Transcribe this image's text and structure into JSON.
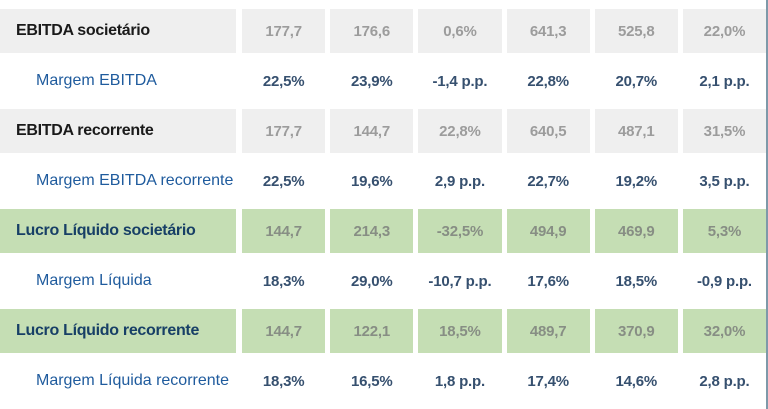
{
  "chart_data": {
    "type": "table",
    "rows": [
      {
        "label": "EBITDA societário",
        "style": "gray",
        "values": [
          "177,7",
          "176,6",
          "0,6%",
          "641,3",
          "525,8",
          "22,0%"
        ]
      },
      {
        "label": "Margem EBITDA",
        "style": "margin",
        "values": [
          "22,5%",
          "23,9%",
          "-1,4 p.p.",
          "22,8%",
          "20,7%",
          "2,1 p.p."
        ]
      },
      {
        "label": "EBITDA recorrente",
        "style": "gray",
        "values": [
          "177,7",
          "144,7",
          "22,8%",
          "640,5",
          "487,1",
          "31,5%"
        ]
      },
      {
        "label": "Margem EBITDA recorrente",
        "style": "margin",
        "values": [
          "22,5%",
          "19,6%",
          "2,9 p.p.",
          "22,7%",
          "19,2%",
          "3,5 p.p."
        ]
      },
      {
        "label": "Lucro Líquido societário",
        "style": "green",
        "values": [
          "144,7",
          "214,3",
          "-32,5%",
          "494,9",
          "469,9",
          "5,3%"
        ]
      },
      {
        "label": "Margem Líquida",
        "style": "margin",
        "values": [
          "18,3%",
          "29,0%",
          "-10,7 p.p.",
          "17,6%",
          "18,5%",
          "-0,9 p.p."
        ]
      },
      {
        "label": "Lucro Líquido recorrente",
        "style": "green",
        "values": [
          "144,7",
          "122,1",
          "18,5%",
          "489,7",
          "370,9",
          "32,0%"
        ]
      },
      {
        "label": "Margem Líquida recorrente",
        "style": "margin",
        "values": [
          "18,3%",
          "16,5%",
          "1,8 p.p.",
          "17,4%",
          "14,6%",
          "2,8 p.p."
        ]
      }
    ]
  },
  "colors": {
    "gray_band": "#efefef",
    "green_band": "#c5deb4",
    "section_label_dark": "#1a1a1a",
    "green_row_label_navy": "#173f66",
    "margin_label_blue": "#1f5b9d",
    "margin_value_navy": "#36506f",
    "gray_row_value": "#9c9c9c",
    "green_row_value": "#878e84",
    "right_border": "#7e99a9",
    "background": "#ffffff"
  }
}
